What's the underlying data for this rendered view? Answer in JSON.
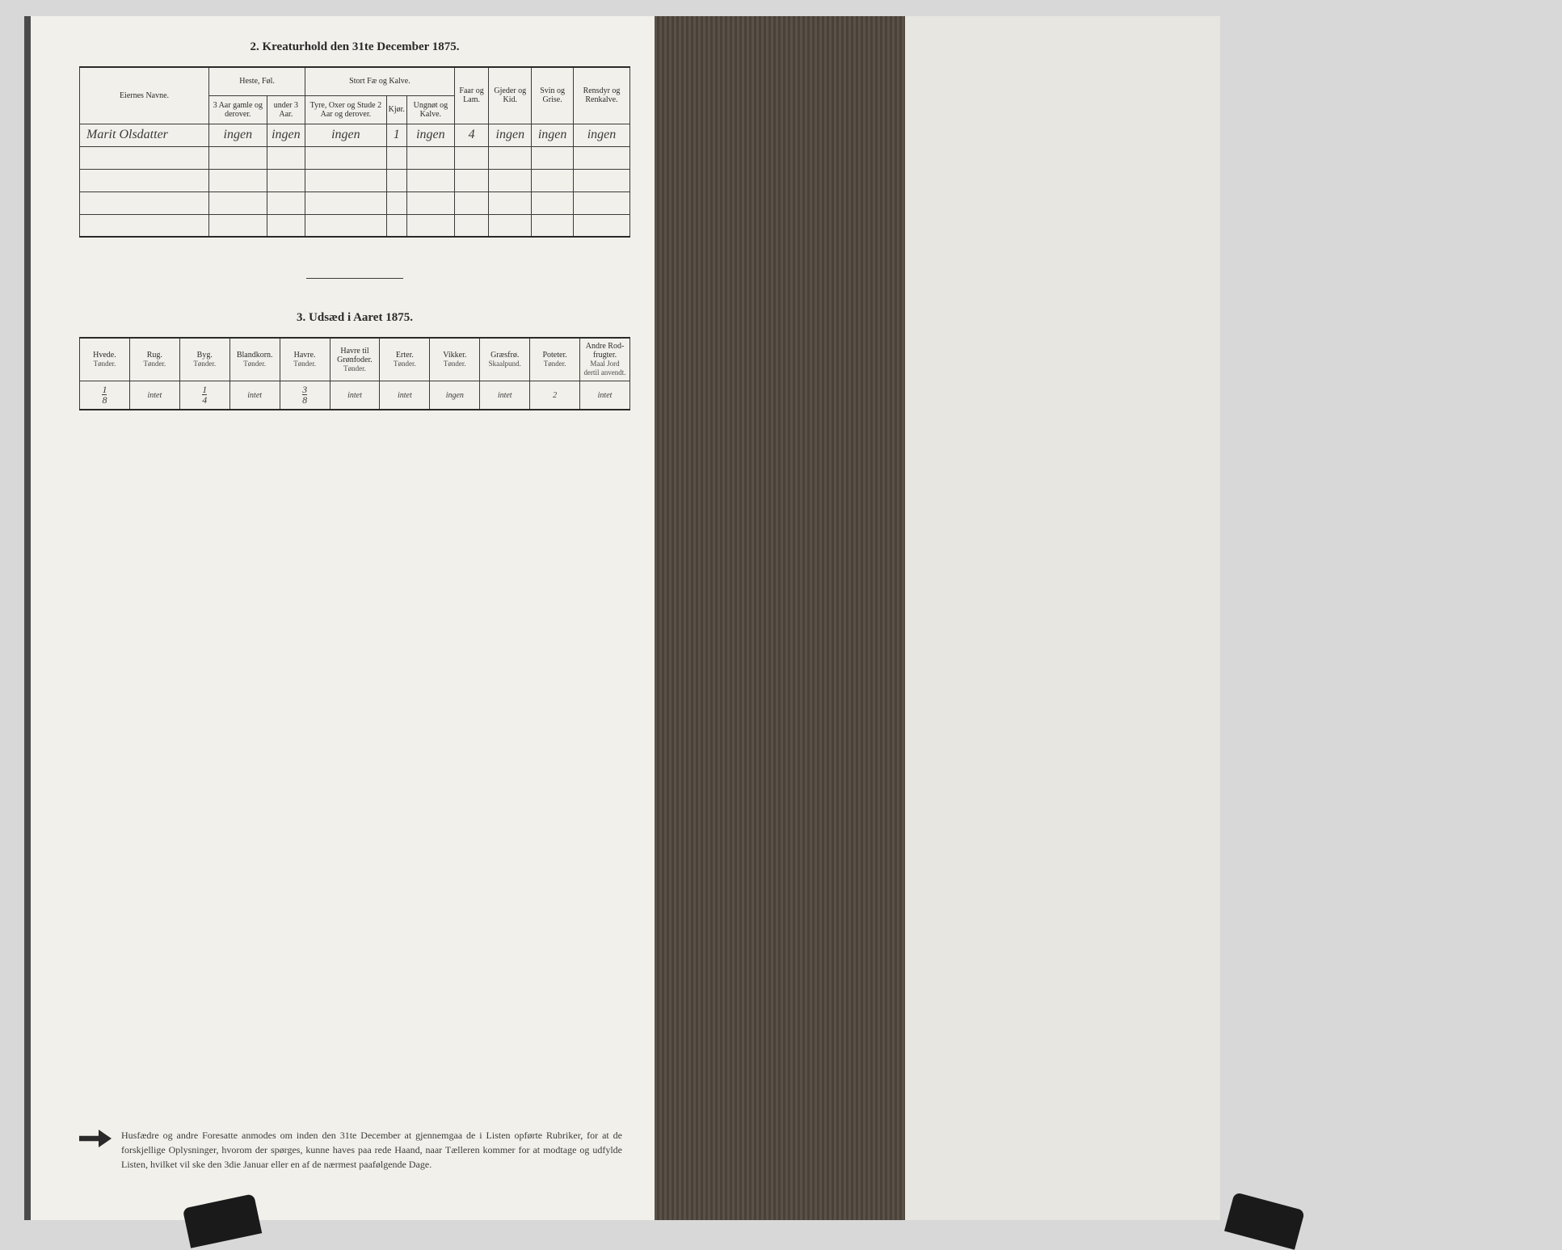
{
  "background_color": "#d8d8d8",
  "page_color": "#f2f0ea",
  "binding_color": "#4a4238",
  "text_color": "#2a2a2a",
  "section1": {
    "title": "2.  Kreaturhold den 31te December 1875.",
    "headers": {
      "name": "Eiernes Navne.",
      "group1": "Heste, Føl.",
      "group1_sub1": "3 Aar gamle og derover.",
      "group1_sub2": "under 3 Aar.",
      "group2": "Stort Fæ og Kalve.",
      "group2_sub1": "Tyre, Oxer og Stude 2 Aar og derover.",
      "group2_sub2": "Kjør.",
      "group2_sub3": "Ungnøt og Kalve.",
      "col6": "Faar og Lam.",
      "col7": "Gjeder og Kid.",
      "col8": "Svin og Grise.",
      "col9": "Rensdyr og Renkalve."
    },
    "row1": {
      "name": "Marit Olsdatter",
      "v1": "ingen",
      "v2": "ingen",
      "v3": "ingen",
      "v4": "1",
      "v5": "ingen",
      "v6": "4",
      "v7": "ingen",
      "v8": "ingen",
      "v9": "ingen"
    }
  },
  "section2": {
    "title": "3.  Udsæd i Aaret 1875.",
    "headers": {
      "c1": "Hvede.",
      "c1s": "Tønder.",
      "c2": "Rug.",
      "c2s": "Tønder.",
      "c3": "Byg.",
      "c3s": "Tønder.",
      "c4": "Blandkorn.",
      "c4s": "Tønder.",
      "c5": "Havre.",
      "c5s": "Tønder.",
      "c6": "Havre til Grønfoder.",
      "c6s": "Tønder.",
      "c7": "Erter.",
      "c7s": "Tønder.",
      "c8": "Vikker.",
      "c8s": "Tønder.",
      "c9": "Græsfrø.",
      "c9s": "Skaalpund.",
      "c10": "Poteter.",
      "c10s": "Tønder.",
      "c11": "Andre Rod-frugter.",
      "c11s": "Maal Jord dertil anvendt."
    },
    "row1": {
      "v1_num": "1",
      "v1_den": "8",
      "v2": "intet",
      "v3_num": "1",
      "v3_den": "4",
      "v4": "intet",
      "v5_num": "3",
      "v5_den": "8",
      "v6": "intet",
      "v7": "intet",
      "v8": "ingen",
      "v9": "intet",
      "v10": "2",
      "v11": "intet"
    }
  },
  "footer": {
    "text": "Husfædre og andre Foresatte anmodes om inden den 31te December at gjennemgaa de i Listen opførte Rubriker, for at de forskjellige Oplysninger, hvorom der spørges, kunne haves paa rede Haand, naar Tælleren kommer for at modtage og udfylde Listen, hvilket vil ske den 3die Januar eller en af de nærmest paafølgende Dage."
  }
}
